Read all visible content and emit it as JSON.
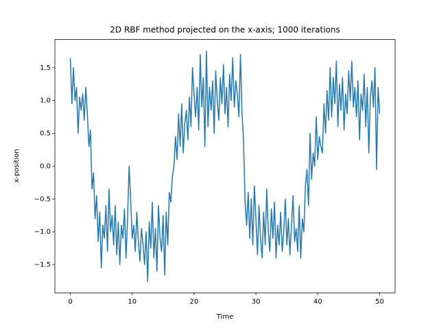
{
  "chart_data": {
    "type": "line",
    "title": "2D RBF method projected on the x-axis; 1000 iterations",
    "xlabel": "Time",
    "ylabel": "x-position",
    "color": "#1f77b4",
    "xlim": [
      -2.5,
      52.5
    ],
    "ylim": [
      -1.93,
      1.93
    ],
    "xticks": [
      0,
      10,
      20,
      30,
      40,
      50
    ],
    "yticks": [
      {
        "value": -1.5,
        "label": "−1.5"
      },
      {
        "value": -1.0,
        "label": "−1.0"
      },
      {
        "value": -0.5,
        "label": "−0.5"
      },
      {
        "value": 0,
        "label": "0.0"
      },
      0.5,
      {
        "value": 1.0,
        "label": "1.0"
      },
      1.5
    ],
    "x": [
      0,
      0.25,
      0.5,
      0.75,
      1,
      1.25,
      1.5,
      1.75,
      2,
      2.25,
      2.5,
      2.75,
      3,
      3.25,
      3.5,
      3.75,
      4,
      4.25,
      4.5,
      4.75,
      5,
      5.25,
      5.5,
      5.75,
      6,
      6.25,
      6.5,
      6.75,
      7,
      7.25,
      7.5,
      7.75,
      8,
      8.25,
      8.5,
      8.75,
      9,
      9.25,
      9.5,
      9.75,
      10,
      10.25,
      10.5,
      10.75,
      11,
      11.25,
      11.5,
      11.75,
      12,
      12.25,
      12.5,
      12.75,
      13,
      13.25,
      13.5,
      13.75,
      14,
      14.25,
      14.5,
      14.75,
      15,
      15.25,
      15.5,
      15.75,
      16,
      16.25,
      16.5,
      16.75,
      17,
      17.25,
      17.5,
      17.75,
      18,
      18.25,
      18.5,
      18.75,
      19,
      19.25,
      19.5,
      19.75,
      20,
      20.25,
      20.5,
      20.75,
      21,
      21.25,
      21.5,
      21.75,
      22,
      22.25,
      22.5,
      22.75,
      23,
      23.25,
      23.5,
      23.75,
      24,
      24.25,
      24.5,
      24.75,
      25,
      25.25,
      25.5,
      25.75,
      26,
      26.25,
      26.5,
      26.75,
      27,
      27.25,
      27.5,
      27.75,
      28,
      28.25,
      28.5,
      28.75,
      29,
      29.25,
      29.5,
      29.75,
      30,
      30.25,
      30.5,
      30.75,
      31,
      31.25,
      31.5,
      31.75,
      32,
      32.25,
      32.5,
      32.75,
      33,
      33.25,
      33.5,
      33.75,
      34,
      34.25,
      34.5,
      34.75,
      35,
      35.25,
      35.5,
      35.75,
      36,
      36.25,
      36.5,
      36.75,
      37,
      37.25,
      37.5,
      37.75,
      38,
      38.25,
      38.5,
      38.75,
      39,
      39.25,
      39.5,
      39.75,
      40,
      40.25,
      40.5,
      40.75,
      41,
      41.25,
      41.5,
      41.75,
      42,
      42.25,
      42.5,
      42.75,
      43,
      43.25,
      43.5,
      43.75,
      44,
      44.25,
      44.5,
      44.75,
      45,
      45.25,
      45.5,
      45.75,
      46,
      46.25,
      46.5,
      46.75,
      47,
      47.25,
      47.5,
      47.75,
      48,
      48.25,
      48.5,
      48.75,
      49,
      49.25,
      49.5,
      49.75,
      50
    ],
    "values": [
      1.65,
      0.95,
      1.5,
      1.0,
      1.2,
      0.5,
      1.05,
      0.85,
      1.1,
      0.7,
      1.2,
      0.8,
      0.3,
      0.55,
      -0.35,
      -0.1,
      -0.8,
      -0.45,
      -1.15,
      -0.7,
      -1.55,
      -0.9,
      -1.1,
      -0.6,
      -1.3,
      -0.35,
      -1.0,
      -0.75,
      -1.2,
      -0.6,
      -1.35,
      -0.85,
      -1.5,
      -0.9,
      -1.1,
      -0.65,
      -1.4,
      -0.8,
      0.0,
      -0.5,
      -1.1,
      -0.9,
      -1.3,
      -0.7,
      -1.15,
      -1.45,
      -0.95,
      -1.2,
      -1.5,
      -1.0,
      -1.76,
      -0.85,
      -1.25,
      -0.55,
      -1.4,
      -0.95,
      -1.6,
      -0.6,
      -1.1,
      -1.3,
      -0.75,
      -1.66,
      -0.7,
      -1.2,
      -0.4,
      -0.55,
      -0.15,
      0.0,
      0.45,
      0.1,
      0.8,
      0.3,
      0.95,
      0.2,
      0.65,
      0.85,
      0.4,
      1.05,
      0.6,
      1.5,
      1.1,
      0.75,
      1.2,
      0.55,
      1.7,
      0.9,
      1.35,
      0.3,
      1.75,
      0.6,
      1.2,
      0.85,
      1.3,
      0.5,
      1.45,
      1.0,
      0.7,
      1.35,
      0.95,
      1.55,
      0.8,
      1.2,
      0.6,
      1.4,
      1.0,
      1.65,
      0.9,
      1.3,
      1.1,
      0.75,
      1.7,
      0.8,
      0.4,
      -0.55,
      -0.9,
      -0.4,
      -1.1,
      -0.5,
      -1.2,
      -0.3,
      -0.8,
      -1.35,
      -0.6,
      -1.1,
      -1.4,
      -0.7,
      -1.2,
      -0.35,
      -1.0,
      -1.3,
      -0.65,
      -1.1,
      -0.55,
      -1.4,
      -0.9,
      -1.2,
      -0.7,
      -1.3,
      -1.0,
      -0.5,
      -1.2,
      -0.8,
      -1.35,
      -0.9,
      -0.45,
      -1.15,
      -0.95,
      -1.3,
      -0.6,
      -1.4,
      -0.8,
      -1.0,
      -0.3,
      -0.05,
      -0.6,
      0.5,
      -0.2,
      0.2,
      0.0,
      0.75,
      0.1,
      0.45,
      0.3,
      0.2,
      0.95,
      0.5,
      1.15,
      0.7,
      1.5,
      0.75,
      1.35,
      0.95,
      1.6,
      0.6,
      1.25,
      0.85,
      1.35,
      0.55,
      1.1,
      0.8,
      1.45,
      1.0,
      1.6,
      0.9,
      1.2,
      0.75,
      1.3,
      0.4,
      1.1,
      0.85,
      1.4,
      0.6,
      1.2,
      0.2,
      1.05,
      1.3,
      0.9,
      1.5,
      -0.05,
      1.2,
      0.8
    ]
  }
}
